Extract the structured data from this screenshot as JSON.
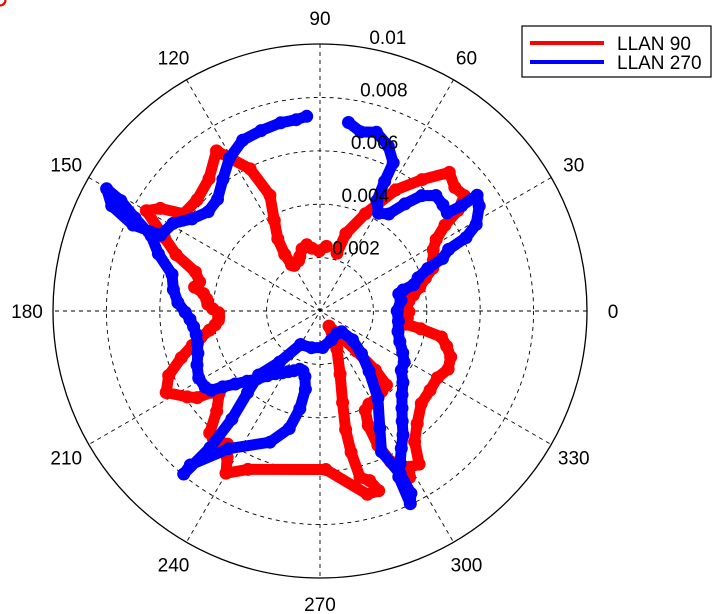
{
  "chart_data": {
    "type": "polar",
    "title": "",
    "radial_ticks": [
      "0.002",
      "0.004",
      "0.006",
      "0.008",
      "0.01"
    ],
    "radial_tick_values": [
      0.002,
      0.004,
      0.006,
      0.008,
      0.01
    ],
    "rmax": 0.01,
    "angle_ticks_deg": [
      0,
      30,
      60,
      90,
      120,
      150,
      180,
      210,
      240,
      270,
      300,
      330
    ],
    "angle_labels": [
      "0",
      "30",
      "60",
      "90",
      "120",
      "150",
      "180",
      "210",
      "240",
      "270",
      "300",
      "330"
    ],
    "grid": true,
    "legend": {
      "placement": "top-right"
    },
    "series": [
      {
        "name": "LLAN 90",
        "color": "#ff0000",
        "theta_deg": [
          73.6,
          71.5,
          65.0,
          58.0,
          52.2,
          47.0,
          42.5,
          38.6,
          36.1,
          34.5,
          31.6,
          28.4,
          24.1,
          20.8,
          17.4,
          13.5,
          9.7,
          6.6,
          4.2,
          1.8,
          -0.6,
          -4.7,
          -8.7,
          -10.0,
          -12.1,
          -15.5,
          -19.4,
          -24.4,
          -29.6,
          -35.7,
          -42.4,
          -49.2,
          -54.1,
          -57.1,
          -60.1,
          -61.7,
          -63.4,
          -64.9,
          -66.7,
          -67.1,
          -65.5,
          -62.3,
          -59.3,
          -55.5,
          -52.3,
          -48.1,
          -46.9,
          -47.7,
          -52.7,
          -59.1,
          -66.1,
          -72.3,
          -76.1,
          -77.8,
          -77.6,
          -76.5,
          -73.7,
          -71.9,
          -75.5,
          -87.9,
          -114.5,
          -120.1,
          -122.4,
          -124.8,
          -127.5,
          -129.8,
          -132.1,
          -135.9,
          -140.8,
          -143.1,
          -144.8,
          -147.1,
          -152.1,
          -156.9,
          -161.4,
          -164.9,
          -167.6,
          -170.2,
          -172.5,
          -174.8,
          -176.7,
          -179.0,
          178.8,
          176.5,
          173.9,
          171.5,
          169.2,
          166.4,
          162.6,
          158.6,
          154.7,
          150.0,
          147.3,
          144.5,
          137.8,
          130.0,
          122.9,
          116.2,
          113.4,
          116.8,
          120.3,
          121.9,
          121.5,
          119.4,
          115.9,
          113.0,
          110.3,
          106.1,
          101.3,
          97.4,
          90.7,
          84.3,
          79.4,
          75.4
        ],
        "r": [
          0.00226,
          0.00306,
          0.00402,
          0.00535,
          0.00623,
          0.0071,
          0.00685,
          0.00692,
          0.00639,
          0.00568,
          0.00511,
          0.00482,
          0.00465,
          0.00452,
          0.00414,
          0.00384,
          0.00355,
          0.00336,
          0.00326,
          0.00324,
          0.00333,
          0.00328,
          0.00327,
          0.00383,
          0.00465,
          0.00492,
          0.00519,
          0.00527,
          0.00506,
          0.00508,
          0.00514,
          0.00557,
          0.00604,
          0.00683,
          0.00675,
          0.00708,
          0.00711,
          0.00623,
          0.00547,
          0.00465,
          0.00409,
          0.00394,
          0.00394,
          0.00386,
          0.00379,
          0.00373,
          0.00303,
          0.00203,
          0.00104,
          0.00066,
          0.00155,
          0.00248,
          0.00353,
          0.00454,
          0.00542,
          0.00641,
          0.00662,
          0.00708,
          0.00709,
          0.00594,
          0.00652,
          0.00702,
          0.00649,
          0.00607,
          0.00616,
          0.00624,
          0.00616,
          0.00539,
          0.00487,
          0.00507,
          0.00563,
          0.00592,
          0.00652,
          0.00616,
          0.00548,
          0.00495,
          0.00456,
          0.0042,
          0.00396,
          0.00382,
          0.0038,
          0.0038,
          0.00402,
          0.00421,
          0.00427,
          0.00441,
          0.00478,
          0.00464,
          0.00489,
          0.00579,
          0.00645,
          0.00751,
          0.00711,
          0.00627,
          0.00621,
          0.00647,
          0.00714,
          0.00593,
          0.00472,
          0.0038,
          0.00313,
          0.0025,
          0.00204,
          0.00196,
          0.00203,
          0.00205,
          0.00218,
          0.00242,
          0.00253,
          0.00237,
          0.00225,
          0.00243
        ]
      },
      {
        "name": "LLAN 270",
        "color": "#0000ff",
        "theta_deg": [
          81.4,
          77.2,
          72.5,
          67.5,
          63.7,
          63.5,
          62.7,
          59.1,
          54.7,
          51.6,
          48.6,
          44.9,
          40.8,
          37.6,
          36.6,
          36.4,
          33.4,
          29.0,
          26.7,
          25.6,
          23.2,
          21.5,
          18.7,
          15.7,
          14.2,
          12.2,
          7.5,
          0.0,
          -7.5,
          -14.7,
          -21.0,
          -26.8,
          -31.3,
          -36.1,
          -40.8,
          -45.6,
          -49.8,
          -53.3,
          -56.2,
          -59.4,
          -62.3,
          -64.6,
          -64.9,
          -63.5,
          -63.8,
          -66.4,
          -63.0,
          -56.4,
          -50.8,
          -45.8,
          -41.6,
          -43.7,
          -53.0,
          -68.4,
          -85.9,
          -103.1,
          -120.0,
          -128.4,
          -133.8,
          -131.6,
          -129.2,
          -128.8,
          -129.9,
          -130.1,
          -123.6,
          -110.9,
          -104.7,
          -101.7,
          -100.6,
          -103.0,
          -105.9,
          -109.3,
          -113.6,
          -117.5,
          -121.4,
          -125.4,
          -129.2,
          -132.7,
          -136.1,
          -139.3,
          -142.0,
          -143.9,
          -146.4,
          -151.1,
          -156.3,
          -160.9,
          -165.2,
          -169.3,
          -172.9,
          -176.3,
          -179.5,
          176.6,
          171.7,
          166.1,
          160.5,
          156.0,
          153.3,
          151.0,
          150.2,
          153.2,
          155.3,
          154.5,
          149.2,
          144.3,
          138.4,
          132.5,
          126.4,
          120.7,
          114.4,
          108.1,
          101.8,
          97.1,
          93.9
        ],
        "r": [
          0.00714,
          0.00688,
          0.00702,
          0.00668,
          0.00619,
          0.00542,
          0.00465,
          0.00427,
          0.00445,
          0.00512,
          0.00576,
          0.00613,
          0.00608,
          0.00602,
          0.00661,
          0.00731,
          0.00714,
          0.00669,
          0.00612,
          0.00534,
          0.00499,
          0.00434,
          0.00388,
          0.00365,
          0.00321,
          0.00302,
          0.00306,
          0.00289,
          0.00296,
          0.00302,
          0.0032,
          0.00347,
          0.00369,
          0.00377,
          0.0041,
          0.00439,
          0.00476,
          0.00515,
          0.00559,
          0.00598,
          0.00645,
          0.00688,
          0.00797,
          0.00763,
          0.0068,
          0.00575,
          0.00493,
          0.00392,
          0.00291,
          0.00223,
          0.00163,
          0.00112,
          0.00105,
          0.00116,
          0.00137,
          0.00141,
          0.00145,
          0.00244,
          0.00332,
          0.00409,
          0.00522,
          0.00657,
          0.00796,
          0.00754,
          0.00619,
          0.00526,
          0.00455,
          0.00374,
          0.00298,
          0.00252,
          0.00234,
          0.00231,
          0.00244,
          0.00256,
          0.00271,
          0.00288,
          0.00313,
          0.00345,
          0.00379,
          0.00419,
          0.00462,
          0.00504,
          0.00516,
          0.00519,
          0.00503,
          0.00484,
          0.00475,
          0.00472,
          0.00477,
          0.00488,
          0.00505,
          0.00533,
          0.00555,
          0.00571,
          0.00642,
          0.00692,
          0.00776,
          0.00853,
          0.00921,
          0.00874,
          0.00771,
          0.00661,
          0.00641,
          0.00591,
          0.0056,
          0.00568,
          0.00613,
          0.00665,
          0.00702,
          0.00711,
          0.0072,
          0.00722,
          0.00731
        ]
      }
    ]
  }
}
